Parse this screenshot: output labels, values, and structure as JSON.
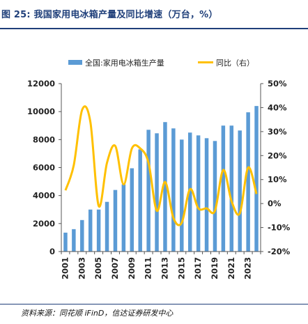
{
  "figure": {
    "title": "图 25:  我国家用电冰箱产量及同比增速（万台，%）",
    "source": "资料来源：同花顺 iFinD，信达证券研发中心"
  },
  "colors": {
    "bar": "#5b9bd5",
    "line": "#ffc000",
    "title": "#1f3f7a",
    "axis": "#555555"
  },
  "chart_data": {
    "type": "bar",
    "legend_position": "top",
    "grid": false,
    "categories": [
      "2001",
      "2002",
      "2003",
      "2004",
      "2005",
      "2006",
      "2007",
      "2008",
      "2009",
      "2010",
      "2011",
      "2012",
      "2013",
      "2014",
      "2015",
      "2016",
      "2017",
      "2018",
      "2019",
      "2020",
      "2021",
      "2022",
      "2023",
      "2024"
    ],
    "x_tick_labels": [
      "2001",
      "2003",
      "2005",
      "2007",
      "2009",
      "2011",
      "2013",
      "2015",
      "2017",
      "2019",
      "2021",
      "2023"
    ],
    "series": [
      {
        "name": "全国:家用电冰箱生产量",
        "type": "bar",
        "axis": "left",
        "values": [
          1350,
          1600,
          2250,
          3000,
          3000,
          3550,
          4400,
          4800,
          5950,
          7300,
          8700,
          8450,
          9250,
          8800,
          8000,
          8500,
          8300,
          8100,
          7900,
          9000,
          9000,
          8650,
          9950,
          10400
        ]
      },
      {
        "name": "同比（右）",
        "type": "line",
        "axis": "right",
        "values": [
          5.5,
          16,
          39,
          34,
          -1,
          17,
          24,
          8,
          23,
          23,
          17,
          -3,
          9,
          -6,
          -8,
          6,
          -2,
          -2,
          -3,
          14,
          1,
          -4,
          15,
          4
        ]
      }
    ],
    "y_left": {
      "min": 0,
      "max": 12000,
      "ticks": [
        0,
        2000,
        4000,
        6000,
        8000,
        10000,
        12000
      ]
    },
    "y_right": {
      "min": -20,
      "max": 50,
      "ticks": [
        "-20%",
        "-10%",
        "0%",
        "10%",
        "20%",
        "30%",
        "40%",
        "50%"
      ]
    }
  }
}
